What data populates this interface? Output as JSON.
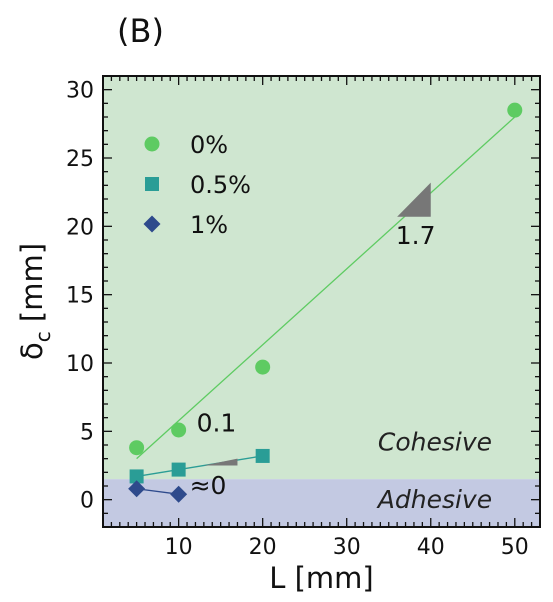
{
  "panel_label": "(B)",
  "chart_data": {
    "type": "scatter",
    "xlabel": "L [mm]",
    "ylabel_main": "δ",
    "ylabel_sub": "c",
    "ylabel_unit": " [mm]",
    "xlim": [
      1,
      53
    ],
    "ylim": [
      -2,
      31
    ],
    "xticks": [
      10,
      20,
      30,
      40,
      50
    ],
    "yticks": [
      0,
      5,
      10,
      15,
      20,
      25,
      30
    ],
    "regions": [
      {
        "label": "Cohesive",
        "y_from": 1.5,
        "y_to": 31,
        "color": "#cfe6d0"
      },
      {
        "label": "Adhesive",
        "y_from": -2,
        "y_to": 1.5,
        "color": "#c3c9e2"
      }
    ],
    "series": [
      {
        "name": "0%",
        "marker": "circle",
        "color": "#5ecb62",
        "x": [
          5,
          10,
          20,
          50
        ],
        "y": [
          3.8,
          5.1,
          9.7,
          28.5
        ],
        "fit": {
          "x": [
            5,
            50
          ],
          "y": [
            3.0,
            28.0
          ]
        }
      },
      {
        "name": "0.5%",
        "marker": "square",
        "color": "#2a9d96",
        "x": [
          5,
          10,
          20
        ],
        "y": [
          1.7,
          2.2,
          3.2
        ],
        "fit": {
          "x": [
            5,
            20
          ],
          "y": [
            1.7,
            3.2
          ]
        }
      },
      {
        "name": "1%",
        "marker": "diamond",
        "color": "#2e4a8c",
        "x": [
          5,
          10
        ],
        "y": [
          0.8,
          0.4
        ],
        "fit": {
          "x": [
            5,
            10
          ],
          "y": [
            0.8,
            0.4
          ]
        }
      }
    ],
    "slope_annotations": [
      {
        "label": "1.7",
        "x_from": 36,
        "x_to": 40,
        "y_from": 20.7,
        "y_to": 23.2,
        "label_x": 38.2,
        "label_y": 18.7
      },
      {
        "label": "0.1",
        "x_from": 13,
        "x_to": 17,
        "y_from": 2.5,
        "y_to": 3.0,
        "label_x": 14.5,
        "label_y": 5.0
      },
      {
        "label": "≈0",
        "label_x": 13.5,
        "label_y": 0.4
      }
    ]
  }
}
